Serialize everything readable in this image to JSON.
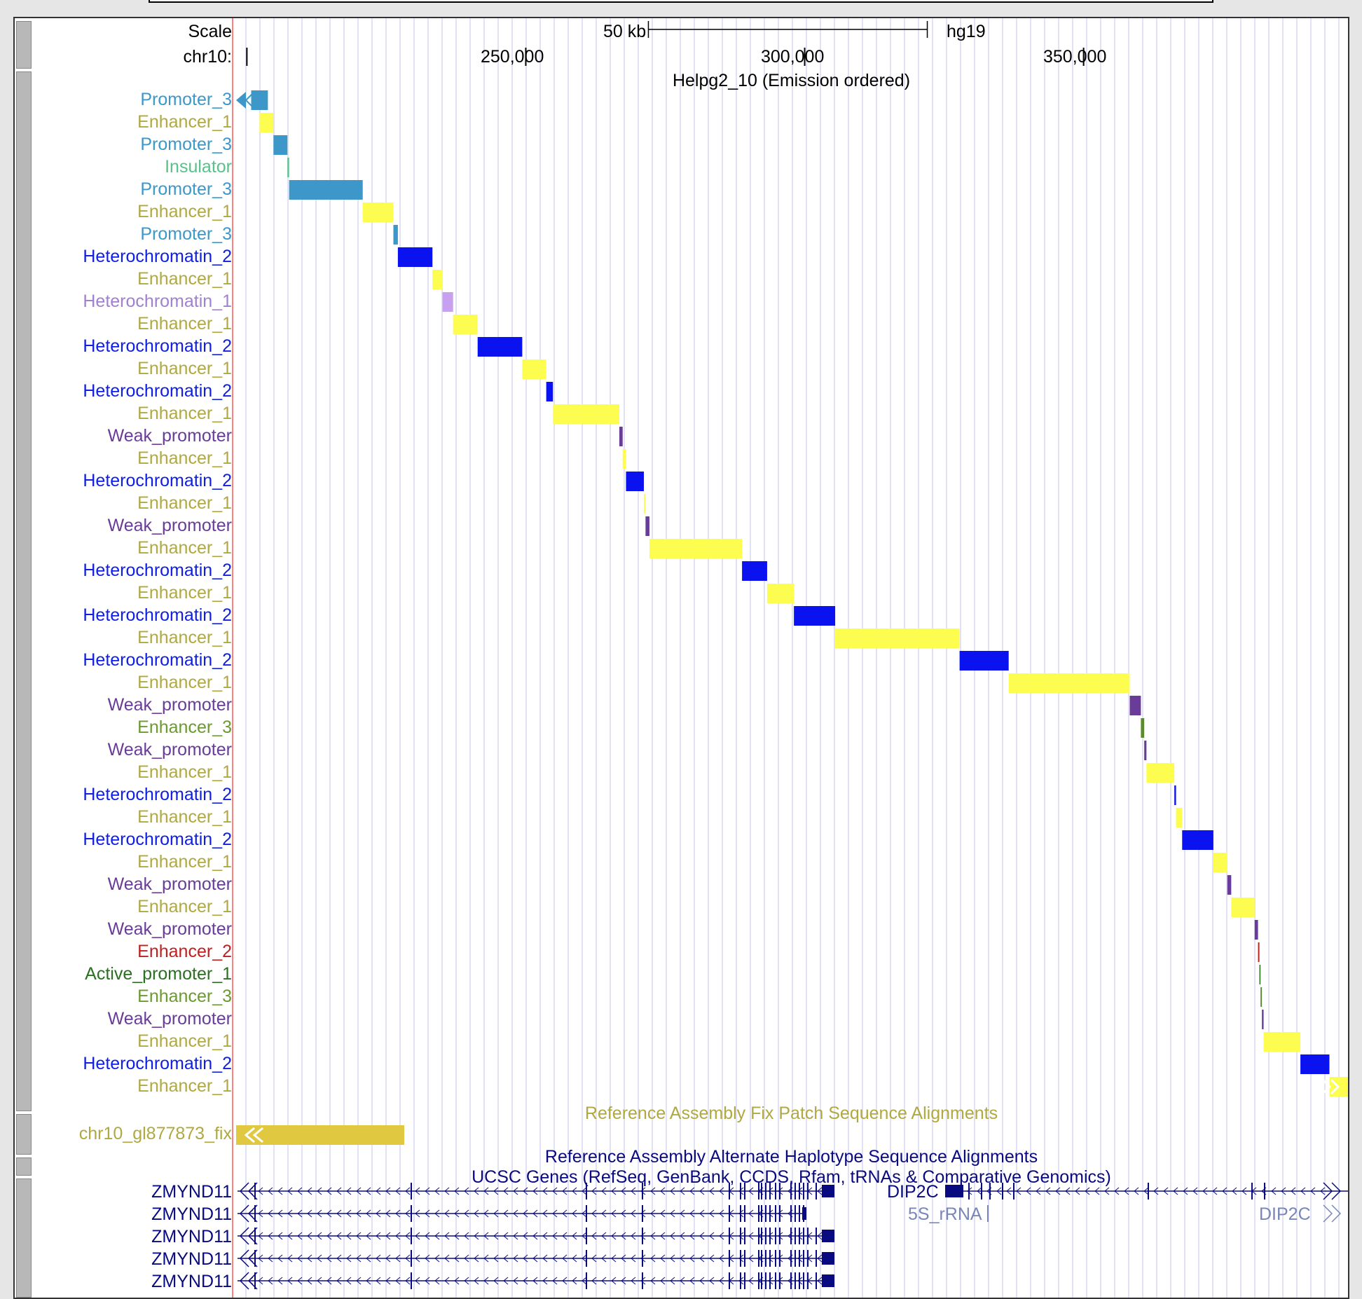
{
  "browser": {
    "scale_label": "Scale",
    "chrom_label": "chr10:",
    "scale_bar_label": "50 kb",
    "assembly": "hg19",
    "positions": [
      "250,000",
      "300,000",
      "350,000"
    ],
    "track_title": "Helpg2_10 (Emission ordered)",
    "fix_patch_title": "Reference Assembly Fix Patch Sequence Alignments",
    "fix_patch_item": "chr10_gl877873_fix",
    "alt_haplotype_title": "Reference Assembly Alternate Haplotype Sequence Alignments",
    "genes_title": "UCSC Genes (RefSeq, GenBank, CCDS, Rfam, tRNAs & Comparative Genomics)",
    "genes": [
      {
        "label": "ZMYND11"
      },
      {
        "label": "ZMYND11"
      },
      {
        "label": "ZMYND11"
      },
      {
        "label": "ZMYND11"
      },
      {
        "label": "ZMYND11"
      }
    ],
    "right_genes": {
      "dip2c_1": "DIP2C",
      "rrna": "5S_rRNA",
      "dip2c_2": "DIP2C"
    }
  },
  "colors": {
    "Promoter_3": "#3d97c9",
    "Enhancer_1": "#fdfd4f",
    "Insulator": "#5ac18a",
    "Heterochromatin_2": "#0a12f0",
    "Heterochromatin_1": "#c8a0f0",
    "Weak_promoter": "#6a3c9a",
    "Enhancer_3": "#5c8a30",
    "Enhancer_2": "#c02020",
    "Active_promoter_1": "#2a7020",
    "fix_patch": "#e0c840",
    "gene": "#0a0a80"
  },
  "label_colors": {
    "Promoter_3": "#3d97c9",
    "Enhancer_1": "#b0a840",
    "Insulator": "#5ac18a",
    "Heterochromatin_2": "#1020e0",
    "Heterochromatin_1": "#a080d0",
    "Weak_promoter": "#6a3c9a",
    "Enhancer_3": "#6a9a30",
    "Enhancer_2": "#c02020",
    "Active_promoter_1": "#2a7020"
  },
  "segments": [
    {
      "label": "Promoter_3",
      "start": 197000,
      "end": 200000
    },
    {
      "label": "Enhancer_1",
      "start": 198500,
      "end": 201000
    },
    {
      "label": "Promoter_3",
      "start": 201000,
      "end": 203500
    },
    {
      "label": "Insulator",
      "start": 203500,
      "end": 203800
    },
    {
      "label": "Promoter_3",
      "start": 203800,
      "end": 217000
    },
    {
      "label": "Enhancer_1",
      "start": 217000,
      "end": 222500
    },
    {
      "label": "Promoter_3",
      "start": 222500,
      "end": 223300
    },
    {
      "label": "Heterochromatin_2",
      "start": 223300,
      "end": 229500
    },
    {
      "label": "Enhancer_1",
      "start": 229500,
      "end": 231300
    },
    {
      "label": "Heterochromatin_1",
      "start": 231300,
      "end": 233200
    },
    {
      "label": "Enhancer_1",
      "start": 233200,
      "end": 237600
    },
    {
      "label": "Heterochromatin_2",
      "start": 237600,
      "end": 245600
    },
    {
      "label": "Enhancer_1",
      "start": 245600,
      "end": 249900
    },
    {
      "label": "Heterochromatin_2",
      "start": 249900,
      "end": 251100
    },
    {
      "label": "Enhancer_1",
      "start": 251100,
      "end": 263000
    },
    {
      "label": "Weak_promoter",
      "start": 263000,
      "end": 263600
    },
    {
      "label": "Enhancer_1",
      "start": 263600,
      "end": 264200
    },
    {
      "label": "Heterochromatin_2",
      "start": 264200,
      "end": 267400
    },
    {
      "label": "Enhancer_1",
      "start": 267400,
      "end": 267700
    },
    {
      "label": "Weak_promoter",
      "start": 267700,
      "end": 268400
    },
    {
      "label": "Enhancer_1",
      "start": 268400,
      "end": 285000
    },
    {
      "label": "Heterochromatin_2",
      "start": 285000,
      "end": 289500
    },
    {
      "label": "Enhancer_1",
      "start": 289500,
      "end": 294300
    },
    {
      "label": "Heterochromatin_2",
      "start": 294300,
      "end": 301700
    },
    {
      "label": "Enhancer_1",
      "start": 301700,
      "end": 324000
    },
    {
      "label": "Heterochromatin_2",
      "start": 324000,
      "end": 332800
    },
    {
      "label": "Enhancer_1",
      "start": 332800,
      "end": 354500
    },
    {
      "label": "Weak_promoter",
      "start": 354500,
      "end": 356500
    },
    {
      "label": "Enhancer_3",
      "start": 356500,
      "end": 357100
    },
    {
      "label": "Weak_promoter",
      "start": 357100,
      "end": 357500
    },
    {
      "label": "Enhancer_1",
      "start": 357500,
      "end": 362500
    },
    {
      "label": "Heterochromatin_2",
      "start": 362500,
      "end": 362800
    },
    {
      "label": "Enhancer_1",
      "start": 362800,
      "end": 363900
    },
    {
      "label": "Heterochromatin_2",
      "start": 363900,
      "end": 369500
    },
    {
      "label": "Enhancer_1",
      "start": 369500,
      "end": 372000
    },
    {
      "label": "Weak_promoter",
      "start": 372000,
      "end": 372700
    },
    {
      "label": "Enhancer_1",
      "start": 372700,
      "end": 376900
    },
    {
      "label": "Weak_promoter",
      "start": 376900,
      "end": 377500
    },
    {
      "label": "Enhancer_2",
      "start": 377500,
      "end": 377750
    },
    {
      "label": "Active_promoter_1",
      "start": 377750,
      "end": 377950
    },
    {
      "label": "Enhancer_3",
      "start": 377950,
      "end": 378200
    },
    {
      "label": "Weak_promoter",
      "start": 378200,
      "end": 378500
    },
    {
      "label": "Enhancer_1",
      "start": 378500,
      "end": 385100
    },
    {
      "label": "Heterochromatin_2",
      "start": 385100,
      "end": 390300
    },
    {
      "label": "Enhancer_1",
      "start": 390300,
      "end": 394000
    }
  ],
  "row_labels": [
    "Promoter_3",
    "Enhancer_1",
    "Promoter_3",
    "Insulator",
    "Promoter_3",
    "Enhancer_1",
    "Promoter_3",
    "Heterochromatin_2",
    "Enhancer_1",
    "Heterochromatin_1",
    "Enhancer_1",
    "Heterochromatin_2",
    "Enhancer_1",
    "Heterochromatin_2",
    "Enhancer_1",
    "Weak_promoter",
    "Enhancer_1",
    "Heterochromatin_2",
    "Enhancer_1",
    "Weak_promoter",
    "Enhancer_1",
    "Heterochromatin_2",
    "Enhancer_1",
    "Heterochromatin_2",
    "Enhancer_1",
    "Heterochromatin_2",
    "Enhancer_1",
    "Weak_promoter",
    "Enhancer_3",
    "Weak_promoter",
    "Enhancer_1",
    "Heterochromatin_2",
    "Enhancer_1",
    "Heterochromatin_2",
    "Enhancer_1",
    "Weak_promoter",
    "Enhancer_1",
    "Weak_promoter",
    "Enhancer_2",
    "Active_promoter_1",
    "Enhancer_3",
    "Weak_promoter",
    "Enhancer_1",
    "Heterochromatin_2",
    "Enhancer_1"
  ]
}
